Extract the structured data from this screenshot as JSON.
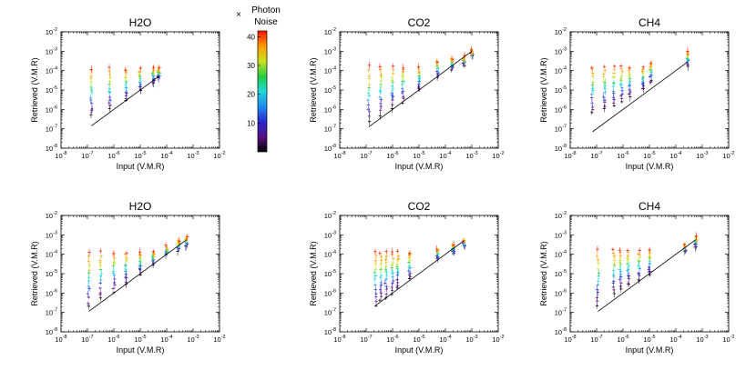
{
  "chart_data": {
    "type": "scatter",
    "figure": {
      "colorbar": {
        "marker_symbol": "×",
        "title_lines": [
          "Photon",
          "Noise"
        ],
        "range": [
          0,
          42
        ],
        "ticks": [
          10,
          20,
          30,
          40
        ],
        "tick_labels": [
          "10",
          "20",
          "30",
          "40"
        ]
      }
    },
    "panels": [
      {
        "title": "H2O",
        "xlabel": "Input (V.M.R)",
        "ylabel": "Retrieved (V.M.R)",
        "xlim_exp": [
          -8,
          -2
        ],
        "ylim_exp": [
          -8,
          -2
        ],
        "x_tick_exps": [
          -8,
          -7,
          -6,
          -5,
          -4,
          -3,
          -2
        ],
        "y_tick_exps": [
          -8,
          -7,
          -6,
          -5,
          -4,
          -3,
          -2
        ],
        "tick_base": "10",
        "x_tick_labels": [
          "-8",
          "-7",
          "-6",
          "-5",
          "-4",
          "-3",
          "-2"
        ],
        "y_tick_labels": [
          "-8",
          "-7",
          "-6",
          "-5",
          "-4",
          "-3",
          "-2"
        ],
        "one_to_one_exp": [
          -6.85,
          -4.3
        ],
        "groups_exp": [
          -6.85,
          -6.15,
          -5.55,
          -5.0,
          -4.5,
          -4.3
        ],
        "top_exp": [
          -3.9,
          -3.9,
          -3.9,
          -3.9,
          -3.9,
          -3.9
        ],
        "bottom_exp": [
          -6.3,
          -6.0,
          -5.6,
          -5.05,
          -4.6,
          -4.4
        ]
      },
      {
        "title": "CO2",
        "xlabel": "Input (V.M.R)",
        "ylabel": "Retrieved (V.M.R)",
        "xlim_exp": [
          -8,
          -2
        ],
        "ylim_exp": [
          -8,
          -2
        ],
        "x_tick_exps": [
          -8,
          -7,
          -6,
          -5,
          -4,
          -3,
          -2
        ],
        "y_tick_exps": [
          -8,
          -7,
          -6,
          -5,
          -4,
          -3,
          -2
        ],
        "tick_base": "10",
        "x_tick_labels": [
          "-8",
          "-7",
          "-6",
          "-5",
          "-4",
          "-3",
          "-2"
        ],
        "y_tick_labels": [
          "-8",
          "-7",
          "-6",
          "-5",
          "-4",
          "-3",
          "-2"
        ],
        "one_to_one_exp": [
          -6.9,
          -3.0
        ],
        "groups_exp": [
          -6.9,
          -6.45,
          -6.0,
          -5.6,
          -5.0,
          -4.3,
          -3.75,
          -3.3,
          -3.0
        ],
        "top_exp": [
          -3.8,
          -3.8,
          -3.8,
          -3.8,
          -3.8,
          -3.5,
          -3.4,
          -3.3,
          -3.0
        ],
        "bottom_exp": [
          -6.6,
          -6.3,
          -5.9,
          -5.6,
          -5.0,
          -4.3,
          -3.9,
          -3.7,
          -3.2
        ]
      },
      {
        "title": "CH4",
        "xlabel": "Input (V.M.R)",
        "ylabel": "Retrieved (V.M.R)",
        "xlim_exp": [
          -8,
          -2
        ],
        "ylim_exp": [
          -8,
          -2
        ],
        "x_tick_exps": [
          -8,
          -7,
          -6,
          -5,
          -4,
          -3,
          -2
        ],
        "y_tick_exps": [
          -8,
          -7,
          -6,
          -5,
          -4,
          -3,
          -2
        ],
        "tick_base": "10",
        "x_tick_labels": [
          "-8",
          "-7",
          "-6",
          "-5",
          "-4",
          "-3",
          "-2"
        ],
        "y_tick_labels": [
          "-8",
          "-7",
          "-6",
          "-5",
          "-4",
          "-3",
          "-2"
        ],
        "one_to_one_exp": [
          -7.15,
          -3.55
        ],
        "groups_exp": [
          -7.15,
          -6.7,
          -6.35,
          -6.05,
          -5.75,
          -5.25,
          -4.95,
          -3.55
        ],
        "top_exp": [
          -3.8,
          -3.8,
          -3.8,
          -3.8,
          -3.8,
          -3.8,
          -3.6,
          -3.0
        ],
        "bottom_exp": [
          -6.2,
          -6.0,
          -5.8,
          -5.6,
          -5.3,
          -5.0,
          -4.6,
          -3.8
        ]
      },
      {
        "title": "H2O",
        "xlabel": "Input (V.M.R)",
        "ylabel": "Retrieved (V.M.R)",
        "xlim_exp": [
          -8,
          -2
        ],
        "ylim_exp": [
          -8,
          -2
        ],
        "x_tick_exps": [
          -8,
          -7,
          -6,
          -5,
          -4,
          -3,
          -2
        ],
        "y_tick_exps": [
          -8,
          -7,
          -6,
          -5,
          -4,
          -3,
          -2
        ],
        "tick_base": "10",
        "x_tick_labels": [
          "-8",
          "-7",
          "-6",
          "-5",
          "-4",
          "-3",
          "-2"
        ],
        "y_tick_labels": [
          "-8",
          "-7",
          "-6",
          "-5",
          "-4",
          "-3",
          "-2"
        ],
        "one_to_one_exp": [
          -6.95,
          -3.25
        ],
        "groups_exp": [
          -6.95,
          -6.5,
          -6.0,
          -5.55,
          -5.0,
          -4.5,
          -4.0,
          -3.55,
          -3.25
        ],
        "top_exp": [
          -3.9,
          -3.9,
          -3.9,
          -3.9,
          -3.9,
          -3.9,
          -3.6,
          -3.3,
          -3.1
        ],
        "bottom_exp": [
          -6.7,
          -6.3,
          -5.9,
          -5.5,
          -5.0,
          -4.5,
          -4.0,
          -3.8,
          -3.6
        ]
      },
      {
        "title": "CO2",
        "xlabel": "Input (V.M.R)",
        "ylabel": "Retrieved (V.M.R)",
        "xlim_exp": [
          -8,
          -2
        ],
        "ylim_exp": [
          -8,
          -2
        ],
        "x_tick_exps": [
          -8,
          -7,
          -6,
          -5,
          -4,
          -3,
          -2
        ],
        "y_tick_exps": [
          -8,
          -7,
          -6,
          -5,
          -4,
          -3,
          -2
        ],
        "tick_base": "10",
        "x_tick_labels": [
          "-8",
          "-7",
          "-6",
          "-5",
          "-4",
          "-3",
          "-2"
        ],
        "y_tick_labels": [
          "-8",
          "-7",
          "-6",
          "-5",
          "-4",
          "-3",
          "-2"
        ],
        "one_to_one_exp": [
          -6.65,
          -3.3
        ],
        "groups_exp": [
          -6.65,
          -6.45,
          -6.25,
          -6.0,
          -5.8,
          -5.35,
          -4.3,
          -3.7,
          -3.3
        ],
        "top_exp": [
          -3.9,
          -3.9,
          -3.9,
          -3.9,
          -3.9,
          -3.9,
          -3.7,
          -3.5,
          -3.3
        ],
        "bottom_exp": [
          -6.6,
          -6.4,
          -6.2,
          -6.0,
          -5.7,
          -5.3,
          -4.3,
          -3.9,
          -3.6
        ]
      },
      {
        "title": "CH4",
        "xlabel": "Input (V.M.R)",
        "ylabel": "Retrieved (V.M.R)",
        "xlim_exp": [
          -8,
          -2
        ],
        "ylim_exp": [
          -8,
          -2
        ],
        "x_tick_exps": [
          -8,
          -7,
          -6,
          -5,
          -4,
          -3,
          -2
        ],
        "y_tick_exps": [
          -8,
          -7,
          -6,
          -5,
          -4,
          -3,
          -2
        ],
        "tick_base": "10",
        "x_tick_labels": [
          "-8",
          "-7",
          "-6",
          "-5",
          "-4",
          "-3",
          "-2"
        ],
        "y_tick_labels": [
          "-8",
          "-7",
          "-6",
          "-5",
          "-4",
          "-3",
          "-2"
        ],
        "one_to_one_exp": [
          -6.95,
          -3.25
        ],
        "groups_exp": [
          -6.95,
          -6.35,
          -6.1,
          -5.8,
          -5.4,
          -5.0,
          -3.65,
          -3.25
        ],
        "top_exp": [
          -3.8,
          -3.8,
          -3.8,
          -3.8,
          -3.8,
          -3.8,
          -3.5,
          -3.1
        ],
        "bottom_exp": [
          -6.7,
          -6.0,
          -5.8,
          -5.6,
          -5.4,
          -5.0,
          -3.9,
          -3.6
        ]
      }
    ]
  }
}
